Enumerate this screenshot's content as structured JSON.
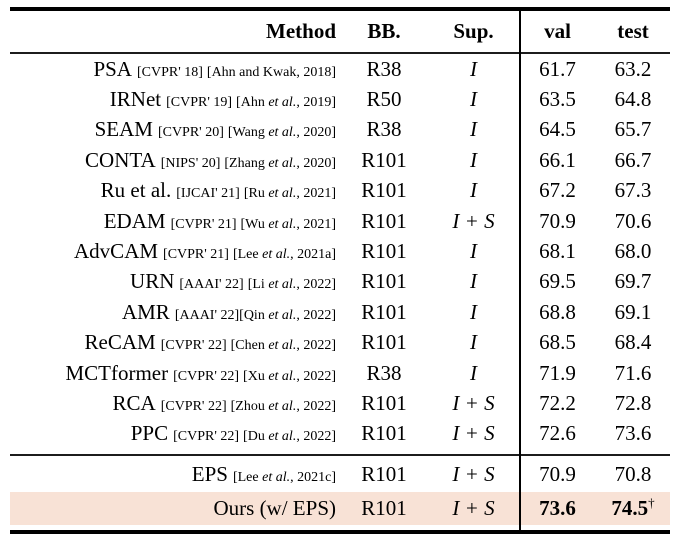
{
  "colors": {
    "highlight": "#f8e2d6",
    "text": "#000000",
    "rule": "#000000"
  },
  "header": {
    "method": "Method",
    "bb": "BB.",
    "sup": "Sup.",
    "val": "val",
    "test": "test"
  },
  "rows": [
    {
      "method": "PSA",
      "venue": "[CVPR' 18]",
      "a_pre": "[Ahn and Kwak, 2018]",
      "a_it": "",
      "a_post": "",
      "bb": "R38",
      "sup": "I",
      "val": "61.7",
      "test": "63.2"
    },
    {
      "method": "IRNet",
      "venue": "[CVPR' 19]",
      "a_pre": "[Ahn ",
      "a_it": "et al.",
      "a_post": ", 2019]",
      "bb": "R50",
      "sup": "I",
      "val": "63.5",
      "test": "64.8"
    },
    {
      "method": "SEAM",
      "venue": "[CVPR' 20]",
      "a_pre": "[Wang ",
      "a_it": "et al.",
      "a_post": ", 2020]",
      "bb": "R38",
      "sup": "I",
      "val": "64.5",
      "test": "65.7"
    },
    {
      "method": "CONTA",
      "venue": "[NIPS' 20]",
      "a_pre": "[Zhang ",
      "a_it": "et al.",
      "a_post": ", 2020]",
      "bb": "R101",
      "sup": "I",
      "val": "66.1",
      "test": "66.7"
    },
    {
      "method": "Ru et al.",
      "venue": "[IJCAI' 21]",
      "a_pre": "[Ru ",
      "a_it": "et al.",
      "a_post": ", 2021]",
      "bb": "R101",
      "sup": "I",
      "val": "67.2",
      "test": "67.3"
    },
    {
      "method": "EDAM",
      "venue": "[CVPR' 21]",
      "a_pre": "[Wu ",
      "a_it": "et al.",
      "a_post": ", 2021]",
      "bb": "R101",
      "sup": "I + S",
      "val": "70.9",
      "test": "70.6"
    },
    {
      "method": "AdvCAM",
      "venue": "[CVPR' 21]",
      "a_pre": "[Lee ",
      "a_it": "et al.",
      "a_post": ", 2021a]",
      "bb": "R101",
      "sup": "I",
      "val": "68.1",
      "test": "68.0"
    },
    {
      "method": "URN",
      "venue": "[AAAI' 22]",
      "a_pre": "[Li ",
      "a_it": "et al.",
      "a_post": ", 2022]",
      "bb": "R101",
      "sup": "I",
      "val": "69.5",
      "test": "69.7"
    },
    {
      "method": "AMR",
      "venue": "[AAAI' 22]",
      "a_pre": "[Qin ",
      "a_it": "et al.",
      "a_post": ", 2022]",
      "bb": "R101",
      "sup": "I",
      "val": "68.8",
      "test": "69.1",
      "nogap": true
    },
    {
      "method": "ReCAM",
      "venue": "[CVPR' 22]",
      "a_pre": "[Chen ",
      "a_it": "et al.",
      "a_post": ", 2022]",
      "bb": "R101",
      "sup": "I",
      "val": "68.5",
      "test": "68.4"
    },
    {
      "method": "MCTformer",
      "venue": "[CVPR' 22]",
      "a_pre": "[Xu ",
      "a_it": "et al.",
      "a_post": ", 2022]",
      "bb": "R38",
      "sup": "I",
      "val": "71.9",
      "test": "71.6"
    },
    {
      "method": "RCA",
      "venue": "[CVPR' 22]",
      "a_pre": "[Zhou ",
      "a_it": "et al.",
      "a_post": ", 2022]",
      "bb": "R101",
      "sup": "I + S",
      "val": "72.2",
      "test": "72.8"
    },
    {
      "method": "PPC",
      "venue": "[CVPR' 22]",
      "a_pre": "[Du ",
      "a_it": "et al.",
      "a_post": ", 2022]",
      "bb": "R101",
      "sup": "I + S",
      "val": "72.6",
      "test": "73.6"
    }
  ],
  "bottom_rows": [
    {
      "method": "EPS",
      "venue": "",
      "a_pre": "[Lee ",
      "a_it": "et al.",
      "a_post": ", 2021c]",
      "bb": "R101",
      "sup": "I + S",
      "val": "70.9",
      "test": "70.8"
    },
    {
      "method": "Ours (w/ EPS)",
      "venue": "",
      "a_pre": "",
      "a_it": "",
      "a_post": "",
      "bb": "R101",
      "sup": "I + S",
      "val": "73.6",
      "test": "74.5",
      "test_sup": "†",
      "highlight": true
    }
  ]
}
